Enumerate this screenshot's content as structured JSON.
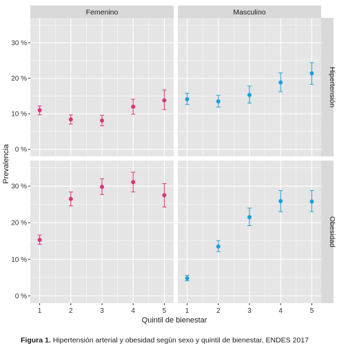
{
  "figure": {
    "caption_label": "Figura 1.",
    "caption_text": "Hipertensión arterial y obesidad según sexo y quintil de bienestar, ENDES 2017"
  },
  "colors": {
    "femenino": "#e0307a",
    "masculino": "#1a9fd9",
    "panel_bg": "#e5e5e5",
    "strip_bg": "#d9d9d9",
    "grid": "#ffffff"
  },
  "chart_data": {
    "type": "scatter",
    "subtype": "point-with-errorbars-faceted",
    "xlabel": "Quintil de bienestar",
    "ylabel": "Prevalencia",
    "x": [
      1,
      2,
      3,
      4,
      5
    ],
    "xticks": [
      "1",
      "2",
      "3",
      "4",
      "5"
    ],
    "yticks": [
      "0 %",
      "10 %",
      "20 %",
      "30 %"
    ],
    "ylim": [
      -2,
      37
    ],
    "grid": true,
    "column_facets": [
      "Femenino",
      "Masculino"
    ],
    "row_facets": [
      "Hipertensión",
      "Obesidad"
    ],
    "panels": [
      {
        "row": "Hipertensión",
        "column": "Femenino",
        "values": [
          11.0,
          8.4,
          8.1,
          12.0,
          13.8
        ],
        "lower": [
          9.7,
          7.1,
          6.6,
          9.9,
          11.2
        ],
        "upper": [
          12.2,
          9.7,
          9.6,
          14.1,
          16.7
        ]
      },
      {
        "row": "Hipertensión",
        "column": "Masculino",
        "values": [
          14.1,
          13.5,
          15.3,
          18.8,
          21.4
        ],
        "lower": [
          12.6,
          11.9,
          13.0,
          16.2,
          18.3
        ],
        "upper": [
          15.8,
          15.2,
          17.8,
          21.5,
          24.4
        ]
      },
      {
        "row": "Obesidad",
        "column": "Femenino",
        "values": [
          15.3,
          26.5,
          29.8,
          31.1,
          27.5
        ],
        "lower": [
          14.1,
          24.6,
          27.7,
          28.4,
          24.3
        ],
        "upper": [
          16.6,
          28.4,
          32.0,
          33.8,
          30.7
        ]
      },
      {
        "row": "Obesidad",
        "column": "Masculino",
        "values": [
          4.8,
          13.5,
          21.5,
          25.9,
          25.8
        ],
        "lower": [
          4.1,
          12.1,
          19.2,
          23.0,
          23.0
        ],
        "upper": [
          5.6,
          15.1,
          24.0,
          28.8,
          28.8
        ]
      }
    ]
  }
}
